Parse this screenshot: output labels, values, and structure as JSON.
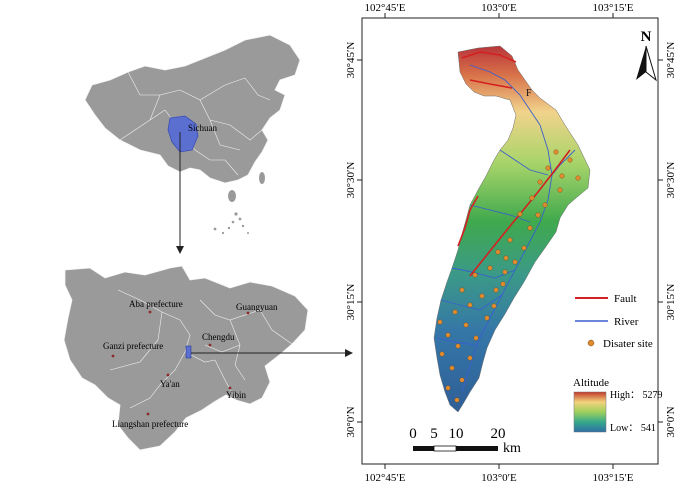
{
  "china_map": {
    "province_label": "Sichuan"
  },
  "sichuan_map": {
    "places": [
      {
        "id": "aba",
        "label": "Aba prefecture"
      },
      {
        "id": "guangyuan",
        "label": "Guangyuan"
      },
      {
        "id": "chengdu",
        "label": "Chengdu"
      },
      {
        "id": "ganzi",
        "label": "Ganzi prefecture"
      },
      {
        "id": "yaan",
        "label": "Ya'an"
      },
      {
        "id": "yibin",
        "label": "Yibin"
      },
      {
        "id": "liangshan",
        "label": "Liangshan prefecture"
      }
    ]
  },
  "study_map": {
    "top_ticks": [
      "102°45′E",
      "103°0′E",
      "103°15′E"
    ],
    "bottom_ticks": [
      "102°45′E",
      "103°0′E",
      "103°15′E"
    ],
    "left_ticks": [
      "30°45′N",
      "30°30′N",
      "30°15′N",
      "30°0′N"
    ],
    "right_ticks": [
      "30°45′N",
      "30°30′N",
      "30°15′N",
      "30°0′N"
    ],
    "north_arrow": "N",
    "fault_marker": "F",
    "scale_bar": {
      "labels": [
        "0",
        "5",
        "10",
        "20"
      ],
      "unit": "km"
    },
    "legend": {
      "fault": "Fault",
      "river": "River",
      "disaster_site": "Disater site",
      "altitude_title": "Altitude",
      "high_label": "High： 5279",
      "low_label": "Low： 541"
    },
    "colors": {
      "fault": "#d42020",
      "river": "#3a5fcd",
      "disaster_site": "#e08a2e",
      "high": "#c0392b",
      "low": "#2f6fa5"
    }
  }
}
